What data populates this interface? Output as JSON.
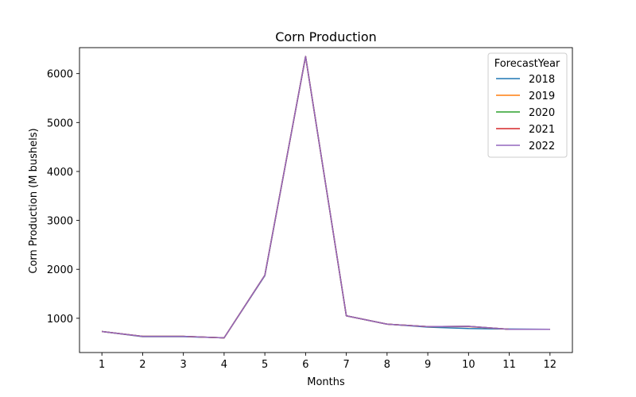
{
  "chart_data": {
    "type": "line",
    "title": "Corn Production",
    "xlabel": "Months",
    "ylabel": "Corn Production (M bushels)",
    "x": [
      1,
      2,
      3,
      4,
      5,
      6,
      7,
      8,
      9,
      10,
      11,
      12
    ],
    "xlim": [
      0.45,
      12.55
    ],
    "ylim": [
      300,
      6530
    ],
    "yticks": [
      1000,
      2000,
      3000,
      4000,
      5000,
      6000
    ],
    "legend": {
      "title": "ForecastYear",
      "placement": "top-right"
    },
    "grid": false,
    "series": [
      {
        "name": "2018",
        "color": "#1f77b4",
        "values": [
          730,
          625,
          625,
          600,
          1870,
          6350,
          1050,
          880,
          820,
          790,
          780,
          775
        ]
      },
      {
        "name": "2019",
        "color": "#ff7f0e",
        "values": [
          730,
          630,
          630,
          600,
          1880,
          6350,
          1050,
          880,
          830,
          830,
          775,
          775
        ]
      },
      {
        "name": "2020",
        "color": "#2ca02c",
        "values": [
          730,
          630,
          630,
          600,
          1880,
          6350,
          1050,
          880,
          830,
          835,
          775,
          775
        ]
      },
      {
        "name": "2021",
        "color": "#d62728",
        "values": [
          730,
          630,
          630,
          600,
          1880,
          6350,
          1050,
          880,
          830,
          835,
          775,
          775
        ]
      },
      {
        "name": "2022",
        "color": "#9467bd",
        "values": [
          730,
          630,
          630,
          600,
          1880,
          6350,
          1050,
          880,
          830,
          835,
          775,
          775
        ]
      }
    ]
  }
}
